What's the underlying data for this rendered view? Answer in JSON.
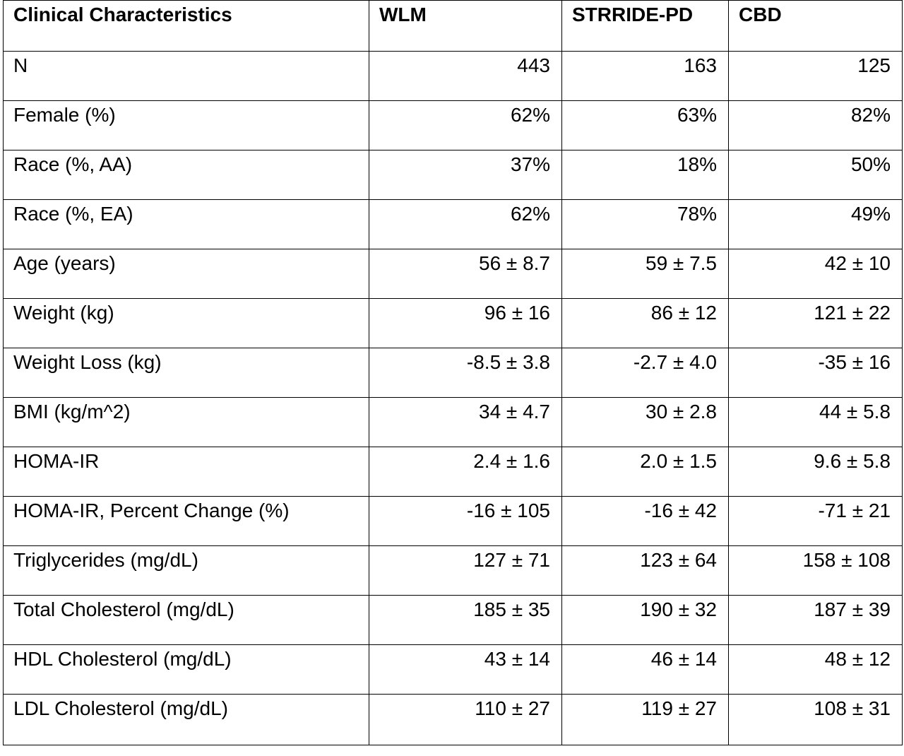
{
  "table": {
    "headers": [
      "Clinical Characteristics",
      "WLM",
      "STRRIDE-PD",
      "CBD"
    ],
    "rows": [
      [
        "N",
        "443",
        "163",
        "125"
      ],
      [
        "Female (%)",
        "62%",
        "63%",
        "82%"
      ],
      [
        "Race (%, AA)",
        "37%",
        "18%",
        "50%"
      ],
      [
        "Race (%, EA)",
        "62%",
        "78%",
        "49%"
      ],
      [
        "Age (years)",
        "56 ± 8.7",
        "59 ± 7.5",
        "42 ± 10"
      ],
      [
        "Weight (kg)",
        "96 ± 16",
        "86 ± 12",
        "121 ± 22"
      ],
      [
        "Weight Loss (kg)",
        "-8.5 ± 3.8",
        "-2.7 ± 4.0",
        "-35 ± 16"
      ],
      [
        "BMI (kg/m^2)",
        "34 ± 4.7",
        "30 ± 2.8",
        "44 ± 5.8"
      ],
      [
        "HOMA-IR",
        "2.4 ± 1.6",
        "2.0 ± 1.5",
        "9.6 ± 5.8"
      ],
      [
        "HOMA-IR, Percent Change (%)",
        "-16 ± 105",
        "-16 ± 42",
        "-71 ± 21"
      ],
      [
        "Triglycerides (mg/dL)",
        "127 ± 71",
        "123 ± 64",
        "158 ± 108"
      ],
      [
        "Total Cholesterol (mg/dL)",
        "185 ± 35",
        "190 ± 32",
        "187 ± 39"
      ],
      [
        "HDL Cholesterol (mg/dL)",
        "43 ± 14",
        "46 ± 14",
        "48 ± 12"
      ],
      [
        "LDL Cholesterol (mg/dL)",
        "110 ± 27",
        "119 ± 27",
        "108 ± 31"
      ]
    ]
  }
}
